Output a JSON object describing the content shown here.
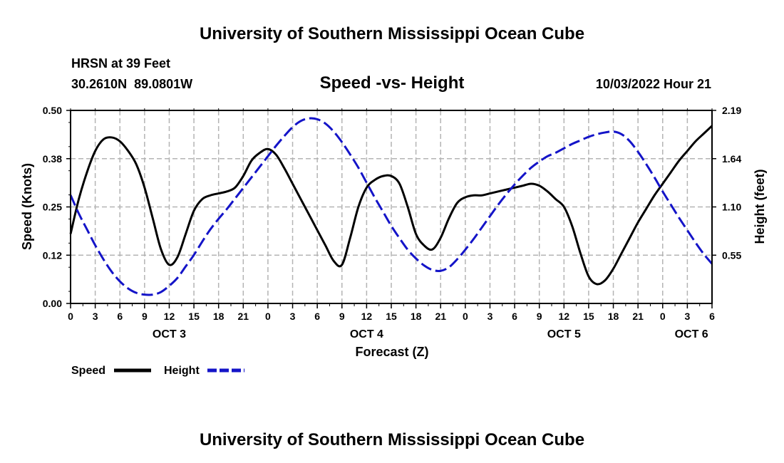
{
  "header": {
    "title": "University of Southern Mississippi Ocean Cube",
    "station": "HRSN at 39 Feet",
    "coords": "30.2610N  89.0801W",
    "subtitle": "Speed -vs- Height",
    "datetime": "10/03/2022 Hour 21"
  },
  "footer": {
    "title": "University of Southern Mississippi Ocean Cube"
  },
  "legend": {
    "speed_label": "Speed",
    "height_label": "Height"
  },
  "colors": {
    "speed": "#000000",
    "height": "#1414c8",
    "grid": "#b4b4b4"
  },
  "chart_data": {
    "type": "line",
    "title": "Speed -vs- Height",
    "xlabel": "Forecast (Z)",
    "ylabel": "Speed (Knots)",
    "y2label": "Height (feet)",
    "xlim": [
      0,
      78
    ],
    "ylim": [
      0,
      0.5
    ],
    "y2lim": [
      0,
      2.19
    ],
    "x_tick_labels": [
      "0",
      "3",
      "6",
      "9",
      "12",
      "15",
      "18",
      "21",
      "0",
      "3",
      "6",
      "9",
      "12",
      "15",
      "18",
      "21",
      "0",
      "3",
      "6",
      "9",
      "12",
      "15",
      "18",
      "21",
      "0",
      "3",
      "6"
    ],
    "day_labels": [
      {
        "label": "OCT 3",
        "x": 12
      },
      {
        "label": "OCT 4",
        "x": 36
      },
      {
        "label": "OCT 5",
        "x": 60
      },
      {
        "label": "OCT 6",
        "x": 75.5
      }
    ],
    "y_tick_labels": [
      "0.00",
      "0.12",
      "0.25",
      "0.38",
      "0.50"
    ],
    "y2_tick_labels": [
      "0.55",
      "1.10",
      "1.64",
      "2.19"
    ],
    "series": [
      {
        "name": "Speed",
        "axis": "left",
        "style": "solid",
        "x": [
          0,
          1,
          2,
          3,
          4,
          5,
          6,
          7,
          8,
          9,
          10,
          11,
          12,
          13,
          14,
          15,
          16,
          17,
          18,
          19,
          20,
          21,
          22,
          23,
          24,
          25,
          26,
          27,
          28,
          29,
          30,
          31,
          32,
          33,
          34,
          35,
          36,
          37,
          38,
          39,
          40,
          41,
          42,
          43,
          44,
          45,
          46,
          47,
          48,
          49,
          50,
          51,
          52,
          53,
          54,
          55,
          56,
          57,
          58,
          59,
          60,
          61,
          62,
          63,
          64,
          65,
          66,
          67,
          68,
          69,
          70,
          71,
          72,
          73,
          74,
          75,
          76,
          77,
          78
        ],
        "values": [
          0.18,
          0.27,
          0.34,
          0.395,
          0.425,
          0.43,
          0.42,
          0.395,
          0.36,
          0.3,
          0.22,
          0.14,
          0.1,
          0.12,
          0.18,
          0.24,
          0.27,
          0.28,
          0.285,
          0.29,
          0.3,
          0.33,
          0.37,
          0.39,
          0.4,
          0.385,
          0.35,
          0.31,
          0.27,
          0.23,
          0.19,
          0.15,
          0.11,
          0.1,
          0.17,
          0.25,
          0.3,
          0.32,
          0.33,
          0.33,
          0.31,
          0.25,
          0.18,
          0.15,
          0.14,
          0.17,
          0.22,
          0.26,
          0.275,
          0.28,
          0.28,
          0.285,
          0.29,
          0.295,
          0.3,
          0.305,
          0.31,
          0.305,
          0.29,
          0.27,
          0.25,
          0.2,
          0.13,
          0.07,
          0.05,
          0.06,
          0.09,
          0.13,
          0.17,
          0.21,
          0.245,
          0.28,
          0.31,
          0.34,
          0.37,
          0.395,
          0.42,
          0.44,
          0.46
        ]
      },
      {
        "name": "Height",
        "axis": "right",
        "style": "dashed",
        "x": [
          0,
          1,
          2,
          3,
          4,
          5,
          6,
          7,
          8,
          9,
          10,
          11,
          12,
          13,
          14,
          15,
          16,
          17,
          18,
          19,
          20,
          21,
          22,
          23,
          24,
          25,
          26,
          27,
          28,
          29,
          30,
          31,
          32,
          33,
          34,
          35,
          36,
          37,
          38,
          39,
          40,
          41,
          42,
          43,
          44,
          45,
          46,
          47,
          48,
          49,
          50,
          51,
          52,
          53,
          54,
          55,
          56,
          57,
          58,
          59,
          60,
          61,
          62,
          63,
          64,
          65,
          66,
          67,
          68,
          69,
          70,
          71,
          72,
          73,
          74,
          75,
          76,
          77,
          78
        ],
        "values": [
          1.23,
          1.02,
          0.84,
          0.66,
          0.5,
          0.36,
          0.25,
          0.17,
          0.12,
          0.1,
          0.1,
          0.13,
          0.2,
          0.29,
          0.42,
          0.55,
          0.7,
          0.84,
          0.96,
          1.07,
          1.19,
          1.31,
          1.43,
          1.55,
          1.67,
          1.79,
          1.9,
          2.0,
          2.07,
          2.1,
          2.09,
          2.04,
          1.95,
          1.83,
          1.69,
          1.54,
          1.37,
          1.2,
          1.04,
          0.88,
          0.74,
          0.61,
          0.51,
          0.43,
          0.38,
          0.37,
          0.41,
          0.5,
          0.61,
          0.73,
          0.86,
          0.99,
          1.12,
          1.24,
          1.35,
          1.45,
          1.54,
          1.61,
          1.67,
          1.71,
          1.76,
          1.81,
          1.85,
          1.89,
          1.92,
          1.94,
          1.95,
          1.92,
          1.84,
          1.72,
          1.58,
          1.43,
          1.27,
          1.12,
          0.97,
          0.83,
          0.69,
          0.56,
          0.45
        ]
      }
    ]
  }
}
